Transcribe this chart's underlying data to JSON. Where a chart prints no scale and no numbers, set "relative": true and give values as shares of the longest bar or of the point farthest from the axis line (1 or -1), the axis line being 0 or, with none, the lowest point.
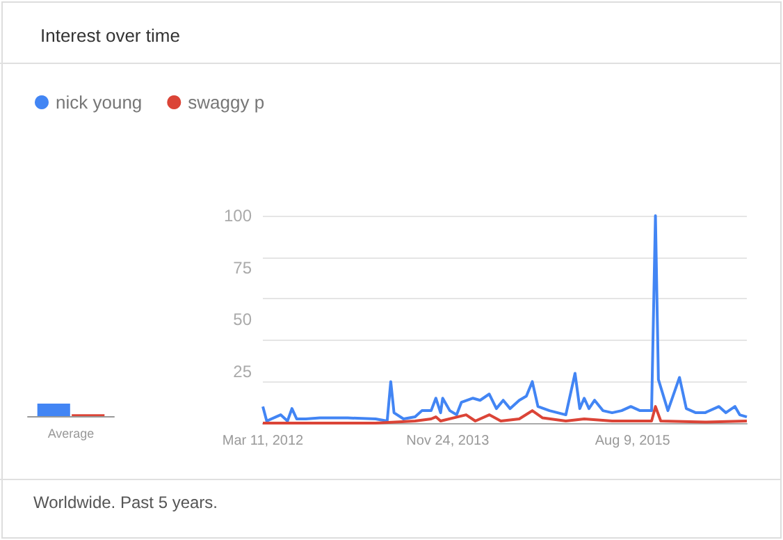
{
  "chart_data": [
    {
      "type": "bar",
      "xlabel": "Average",
      "categories": [
        null
      ],
      "relative": true,
      "series": [
        {
          "color": "#4285f4",
          "values": [
            1
          ]
        },
        {
          "color": "#db4437",
          "values": [
            0.15
          ]
        }
      ]
    },
    {
      "type": "line",
      "title": "Interest over time",
      "annotations": [
        "Worldwide. Past 5 years."
      ],
      "legend": "top left",
      "marker": "none",
      "grid": "y",
      "xlim": [
        "2012-03-11",
        "2016-08-28"
      ],
      "xticks": [
        {
          "value": "2012-03-11",
          "label": "Mar 11, 2012"
        },
        {
          "value": "2013-11-24",
          "label": "Nov 24, 2013"
        },
        {
          "value": "2015-08-09",
          "label": "Aug 9, 2015"
        }
      ],
      "ylim": [
        0,
        100
      ],
      "yticks": [
        25,
        50,
        75,
        100
      ],
      "series": [
        {
          "name": "nick young",
          "color": "#4285f4",
          "x": [
            "2012-03-11",
            "2012-03-24",
            "2012-04-24",
            "2012-05-10",
            "2012-06-02",
            "2012-06-17",
            "2012-07-03",
            "2012-08-03",
            "2012-09-19",
            "2012-12-22",
            "2013-03-26",
            "2013-05-04",
            "2013-05-16",
            "2013-05-27",
            "2013-06-28",
            "2013-08-06",
            "2013-08-29",
            "2013-09-29",
            "2013-10-15",
            "2013-10-31",
            "2013-11-07",
            "2013-12-01",
            "2013-12-24",
            "2014-01-09",
            "2014-02-17",
            "2014-03-13",
            "2014-04-13",
            "2014-05-07",
            "2014-05-30",
            "2014-06-22",
            "2014-07-23",
            "2014-08-16",
            "2014-09-05",
            "2014-09-24",
            "2014-11-02",
            "2014-12-27",
            "2015-01-27",
            "2015-02-12",
            "2015-02-27",
            "2015-03-15",
            "2015-04-03",
            "2015-05-01",
            "2015-06-01",
            "2015-07-03",
            "2015-08-03",
            "2015-09-03",
            "2015-10-12",
            "2015-10-25",
            "2015-11-04",
            "2015-12-06",
            "2016-01-14",
            "2016-02-06",
            "2016-03-09",
            "2016-04-09",
            "2016-05-26",
            "2016-06-18",
            "2016-07-19",
            "2016-08-04",
            "2016-08-28"
          ],
          "values": [
            8,
            1,
            3,
            4,
            1,
            7,
            2,
            2,
            2.5,
            2.5,
            2,
            1,
            20,
            5,
            2,
            3,
            6,
            6,
            12,
            5,
            12,
            6,
            4,
            10,
            12,
            11,
            14,
            7,
            11,
            7,
            11,
            13,
            20,
            8,
            6,
            4,
            24,
            7,
            12,
            7,
            11,
            6,
            5,
            6,
            8,
            6,
            6,
            100,
            21,
            6,
            22,
            7,
            5,
            5,
            8,
            5,
            8,
            4,
            3
          ]
        },
        {
          "name": "swaggy p",
          "color": "#db4437",
          "x": [
            "2012-03-11",
            "2012-09-19",
            "2013-03-26",
            "2013-08-06",
            "2013-09-29",
            "2013-10-15",
            "2013-10-31",
            "2014-01-25",
            "2014-02-25",
            "2014-04-13",
            "2014-05-22",
            "2014-07-23",
            "2014-09-05",
            "2014-10-10",
            "2014-12-27",
            "2015-02-27",
            "2015-06-01",
            "2015-10-12",
            "2015-10-25",
            "2015-11-12",
            "2016-04-09",
            "2016-08-28"
          ],
          "values": [
            0,
            0,
            0,
            1,
            2,
            3,
            1,
            4,
            1,
            4,
            1,
            2,
            6,
            2.5,
            1,
            2,
            1,
            1,
            8,
            1,
            0.5,
            1
          ]
        }
      ]
    }
  ]
}
